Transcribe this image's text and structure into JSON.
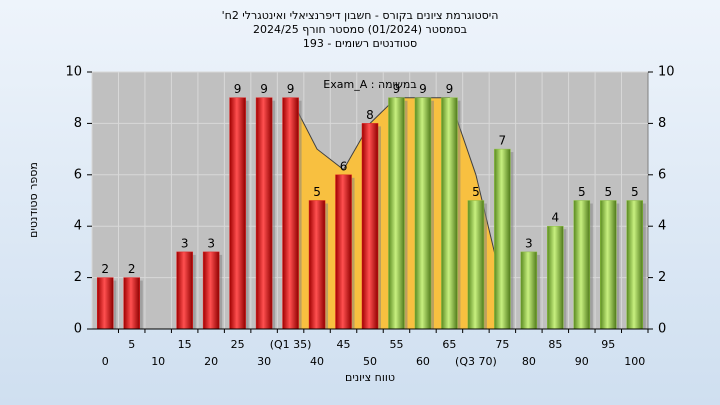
{
  "chart_data": {
    "type": "bar",
    "title_lines": [
      "היסטוגרמת ציונים בקורס - חשבון דיפרנציאלי ואינטגרלי 2ח'",
      "בסמסטר (01/2024)  סמסטר חורף 2024/25",
      "סטודנטים רשומים - 193"
    ],
    "annotation": "במשימה : Exam_A",
    "x_label": "טווח ציונים",
    "y_label": "מספר סטודנטים",
    "categories": [
      "0",
      "5",
      "10",
      "15",
      "20",
      "25",
      "30",
      "(Q1 35)",
      "40",
      "45",
      "50",
      "55",
      "60",
      "65",
      "(Q3 70)",
      "75",
      "80",
      "85",
      "90",
      "95",
      "100"
    ],
    "values": [
      2,
      2,
      null,
      3,
      3,
      9,
      9,
      9,
      5,
      6,
      8,
      9,
      9,
      9,
      5,
      7,
      3,
      4,
      5,
      5,
      5
    ],
    "colors": [
      "#e02020",
      "#e02020",
      "#e02020",
      "#e02020",
      "#e02020",
      "#e02020",
      "#e02020",
      "#e02020",
      "#e02020",
      "#e02020",
      "#e02020",
      "#8cc040",
      "#8cc040",
      "#8cc040",
      "#8cc040",
      "#8cc040",
      "#8cc040",
      "#8cc040",
      "#8cc040",
      "#8cc040",
      "#8cc040"
    ],
    "area_values": [
      null,
      null,
      null,
      null,
      null,
      null,
      null,
      9,
      7,
      6.2,
      8,
      9,
      9,
      9,
      6,
      1.7,
      null,
      null,
      null,
      null,
      null
    ],
    "area_color": "#f8c040",
    "ylim": [
      0,
      10
    ],
    "yticks": [
      0,
      2,
      4,
      6,
      8,
      10
    ],
    "y2lim": [
      0,
      10
    ],
    "y2ticks": [
      0,
      2,
      4,
      6,
      8,
      10
    ],
    "grid": true
  }
}
